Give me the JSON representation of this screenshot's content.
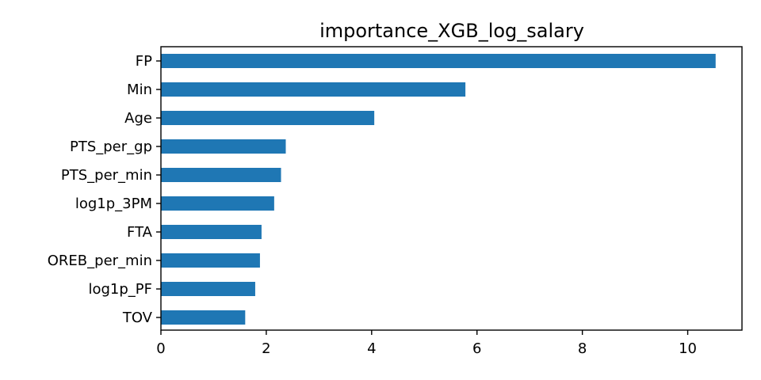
{
  "chart_data": {
    "type": "bar",
    "orientation": "horizontal",
    "title": "importance_XGB_log_salary",
    "xlabel": "",
    "ylabel": "",
    "categories": [
      "FP",
      "Min",
      "Age",
      "PTS_per_gp",
      "PTS_per_min",
      "log1p_3PM",
      "FTA",
      "OREB_per_min",
      "log1p_PF",
      "TOV"
    ],
    "values": [
      10.53,
      5.78,
      4.05,
      2.37,
      2.28,
      2.15,
      1.91,
      1.88,
      1.79,
      1.6
    ],
    "xlim": [
      0,
      11.03
    ],
    "xticks": [
      0,
      2,
      4,
      6,
      8,
      10
    ],
    "grid": false,
    "legend": "none",
    "bar_color": "#1f77b4"
  }
}
